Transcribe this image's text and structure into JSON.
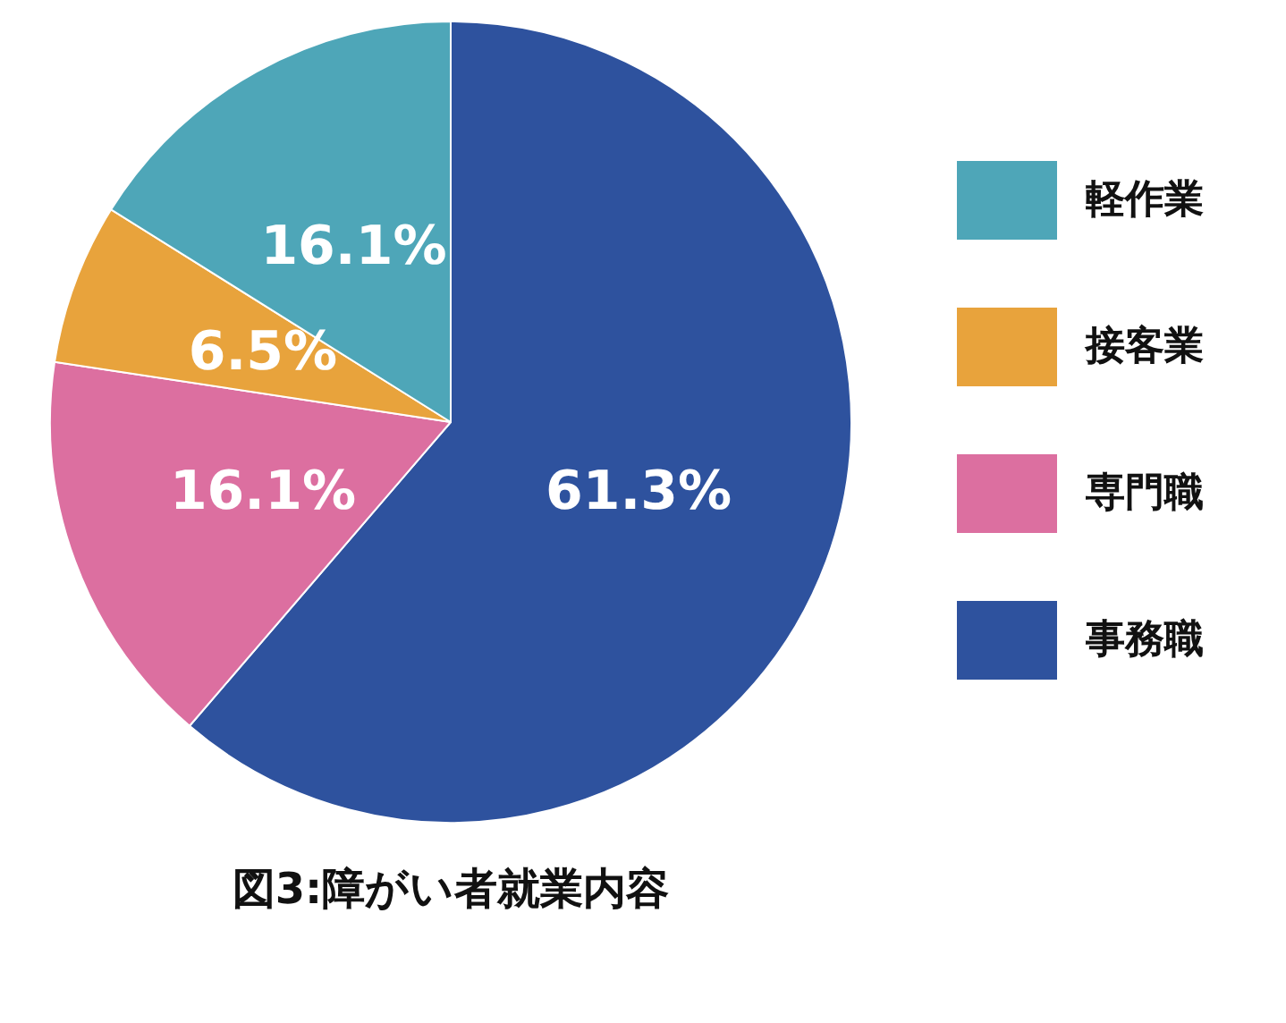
{
  "chart_data": {
    "type": "pie",
    "title": "図3:障がい者就業内容",
    "categories": [
      "事務職",
      "専門職",
      "接客業",
      "軽作業"
    ],
    "values": [
      61.3,
      16.1,
      6.5,
      16.1
    ],
    "colors": [
      "#2e529e",
      "#dc6fa0",
      "#e8a33c",
      "#4ea6b8"
    ],
    "value_labels": [
      "61.3%",
      "16.1%",
      "6.5%",
      "16.1%"
    ],
    "legend": "right"
  }
}
